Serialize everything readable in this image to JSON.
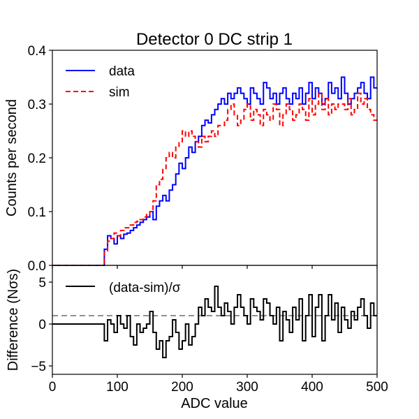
{
  "chart_data": [
    {
      "type": "line",
      "style": "step",
      "title": "Detector 0 DC strip 1",
      "xlabel": "",
      "ylabel": "Counts per second",
      "xlim": [
        0,
        500
      ],
      "ylim": [
        0,
        0.4
      ],
      "yticks": [
        0.0,
        0.1,
        0.2,
        0.3,
        0.4
      ],
      "ytick_labels": [
        "0.0",
        "0.1",
        "0.2",
        "0.3",
        "0.4"
      ],
      "legend": {
        "placement": "top-left",
        "entries": [
          "data",
          "sim"
        ]
      },
      "series": [
        {
          "name": "data",
          "color": "#0000ff",
          "linestyle": "solid",
          "step_edges": [
            0,
            80,
            85,
            90,
            95,
            100,
            105,
            110,
            115,
            120,
            125,
            130,
            135,
            140,
            145,
            150,
            155,
            160,
            165,
            170,
            175,
            180,
            185,
            190,
            195,
            200,
            205,
            210,
            215,
            220,
            225,
            230,
            235,
            240,
            245,
            250,
            255,
            260,
            265,
            270,
            275,
            280,
            285,
            290,
            295,
            300,
            305,
            310,
            315,
            320,
            325,
            330,
            335,
            340,
            345,
            350,
            355,
            360,
            365,
            370,
            375,
            380,
            385,
            390,
            395,
            400,
            405,
            410,
            415,
            420,
            425,
            430,
            435,
            440,
            445,
            450,
            455,
            460,
            465,
            470,
            475,
            480,
            485,
            490,
            495,
            500
          ],
          "values": [
            0.0,
            0.03,
            0.055,
            0.05,
            0.04,
            0.055,
            0.05,
            0.058,
            0.06,
            0.065,
            0.07,
            0.075,
            0.08,
            0.085,
            0.09,
            0.1,
            0.085,
            0.11,
            0.12,
            0.13,
            0.12,
            0.14,
            0.15,
            0.17,
            0.19,
            0.18,
            0.2,
            0.22,
            0.21,
            0.23,
            0.24,
            0.26,
            0.27,
            0.265,
            0.28,
            0.29,
            0.3,
            0.31,
            0.3,
            0.32,
            0.31,
            0.32,
            0.33,
            0.32,
            0.31,
            0.3,
            0.33,
            0.32,
            0.31,
            0.3,
            0.34,
            0.33,
            0.31,
            0.32,
            0.3,
            0.32,
            0.33,
            0.31,
            0.3,
            0.32,
            0.31,
            0.33,
            0.3,
            0.32,
            0.34,
            0.31,
            0.33,
            0.32,
            0.3,
            0.31,
            0.34,
            0.32,
            0.33,
            0.31,
            0.35,
            0.32,
            0.3,
            0.31,
            0.32,
            0.33,
            0.34,
            0.32,
            0.31,
            0.35,
            0.33
          ]
        },
        {
          "name": "sim",
          "color": "#ff0000",
          "linestyle": "dashed",
          "step_edges": [
            0,
            80,
            85,
            90,
            95,
            100,
            105,
            110,
            115,
            120,
            125,
            130,
            135,
            140,
            145,
            150,
            155,
            160,
            165,
            170,
            175,
            180,
            185,
            190,
            195,
            200,
            205,
            210,
            215,
            220,
            225,
            230,
            235,
            240,
            245,
            250,
            255,
            260,
            265,
            270,
            275,
            280,
            285,
            290,
            295,
            300,
            305,
            310,
            315,
            320,
            325,
            330,
            335,
            340,
            345,
            350,
            355,
            360,
            365,
            370,
            375,
            380,
            385,
            390,
            395,
            400,
            405,
            410,
            415,
            420,
            425,
            430,
            435,
            440,
            445,
            450,
            455,
            460,
            465,
            470,
            475,
            480,
            485,
            490,
            495,
            500
          ],
          "values": [
            0.0,
            0.025,
            0.045,
            0.05,
            0.06,
            0.055,
            0.065,
            0.07,
            0.07,
            0.075,
            0.08,
            0.082,
            0.085,
            0.09,
            0.095,
            0.1,
            0.12,
            0.15,
            0.16,
            0.18,
            0.2,
            0.21,
            0.2,
            0.22,
            0.23,
            0.25,
            0.24,
            0.25,
            0.24,
            0.23,
            0.22,
            0.24,
            0.23,
            0.24,
            0.25,
            0.24,
            0.26,
            0.26,
            0.27,
            0.29,
            0.3,
            0.28,
            0.26,
            0.27,
            0.29,
            0.3,
            0.27,
            0.29,
            0.28,
            0.26,
            0.29,
            0.28,
            0.27,
            0.3,
            0.29,
            0.26,
            0.28,
            0.3,
            0.29,
            0.27,
            0.28,
            0.3,
            0.29,
            0.27,
            0.31,
            0.28,
            0.3,
            0.32,
            0.29,
            0.31,
            0.28,
            0.3,
            0.29,
            0.3,
            0.3,
            0.29,
            0.31,
            0.28,
            0.29,
            0.32,
            0.3,
            0.31,
            0.29,
            0.28,
            0.27
          ]
        }
      ]
    },
    {
      "type": "line",
      "style": "step",
      "title": "",
      "xlabel": "ADC value",
      "ylabel": "Difference (Nσs)",
      "xlim": [
        0,
        500
      ],
      "ylim": [
        -6,
        7
      ],
      "xticks": [
        0,
        100,
        200,
        300,
        400,
        500
      ],
      "xtick_labels": [
        "0",
        "100",
        "200",
        "300",
        "400",
        "500"
      ],
      "yticks": [
        -5,
        0,
        5
      ],
      "ytick_labels": [
        "−5",
        "0",
        "5"
      ],
      "reference_line": {
        "y": 1,
        "color": "#808080",
        "linestyle": "dashed"
      },
      "legend": {
        "placement": "top-left",
        "entries": [
          "(data-sim)/σ"
        ]
      },
      "series": [
        {
          "name": "(data-sim)/σ",
          "color": "#000000",
          "linestyle": "solid",
          "step_edges": [
            0,
            80,
            85,
            90,
            95,
            100,
            105,
            110,
            115,
            120,
            125,
            130,
            135,
            140,
            145,
            150,
            155,
            160,
            165,
            170,
            175,
            180,
            185,
            190,
            195,
            200,
            205,
            210,
            215,
            220,
            225,
            230,
            235,
            240,
            245,
            250,
            255,
            260,
            265,
            270,
            275,
            280,
            285,
            290,
            295,
            300,
            305,
            310,
            315,
            320,
            325,
            330,
            335,
            340,
            345,
            350,
            355,
            360,
            365,
            370,
            375,
            380,
            385,
            390,
            395,
            400,
            405,
            410,
            415,
            420,
            425,
            430,
            435,
            440,
            445,
            450,
            455,
            460,
            465,
            470,
            475,
            480,
            485,
            490,
            495,
            500
          ],
          "values": [
            0.0,
            -2.0,
            0.5,
            0.0,
            -1.0,
            1.0,
            0.0,
            -0.5,
            1.0,
            -1.5,
            -2.5,
            0.0,
            -1.0,
            -0.5,
            0.0,
            1.5,
            -1.0,
            -3.0,
            -2.0,
            -4.0,
            -2.0,
            -1.5,
            0.5,
            -1.0,
            -3.0,
            -2.0,
            0.0,
            -2.5,
            -1.5,
            0.0,
            2.0,
            1.0,
            3.0,
            2.0,
            1.5,
            4.5,
            2.0,
            1.0,
            2.5,
            1.5,
            0.0,
            2.0,
            3.5,
            2.0,
            1.0,
            0.0,
            3.0,
            2.0,
            1.5,
            0.5,
            3.0,
            2.5,
            1.0,
            0.0,
            2.0,
            -2.0,
            1.5,
            0.5,
            -1.0,
            2.0,
            0.5,
            3.0,
            -2.0,
            1.0,
            3.5,
            -1.5,
            2.0,
            3.5,
            -2.0,
            1.0,
            3.5,
            0.5,
            2.5,
            -1.0,
            2.0,
            0.5,
            -0.5,
            1.5,
            0.5,
            2.0,
            3.0,
            1.0,
            -0.5,
            2.5,
            1.0
          ]
        }
      ]
    }
  ]
}
